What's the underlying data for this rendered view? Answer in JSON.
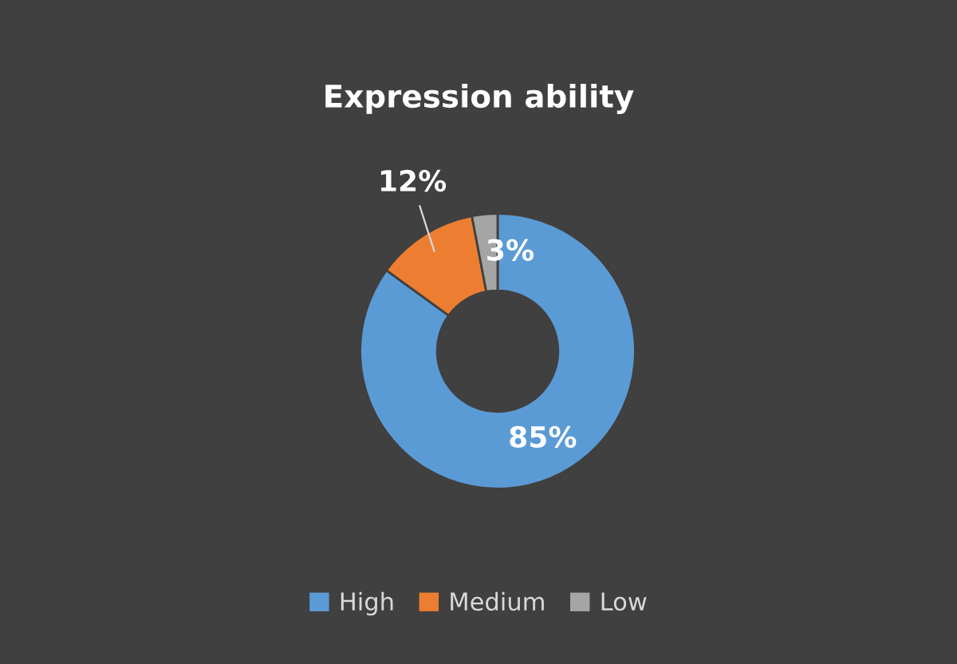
{
  "chart_data": {
    "type": "donut",
    "title": "Expression ability",
    "categories": [
      "High",
      "Medium",
      "Low"
    ],
    "values": [
      85,
      12,
      3
    ],
    "colors": [
      "#5b9bd5",
      "#ed7d31",
      "#a5a5a5"
    ],
    "value_labels": [
      "85%",
      "12%",
      "3%"
    ],
    "legend": "bottom"
  }
}
